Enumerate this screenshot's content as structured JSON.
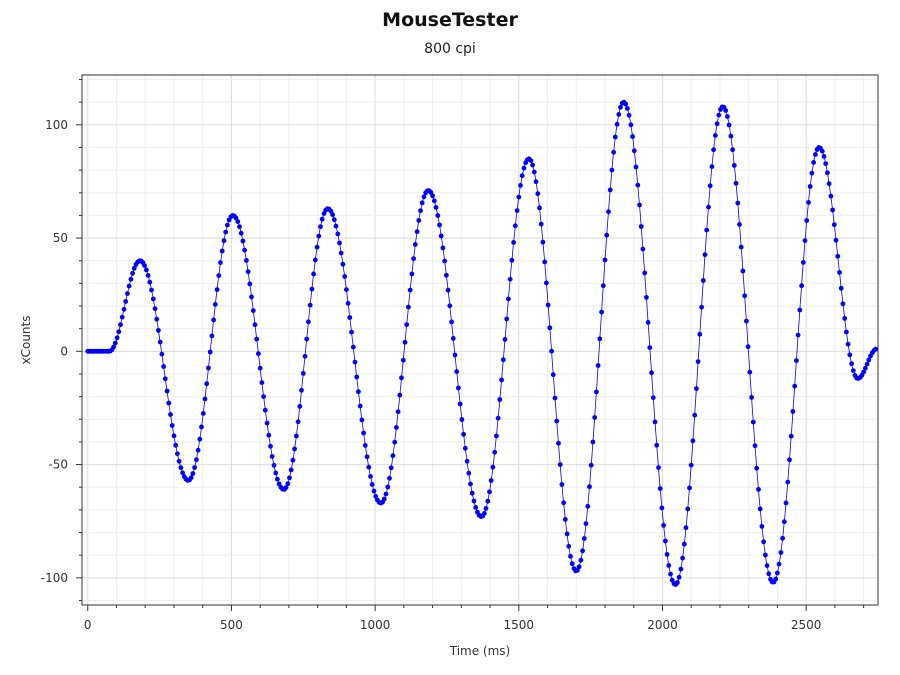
{
  "chart_data": {
    "type": "scatter",
    "title": "MouseTester",
    "subtitle": "800 cpi",
    "xlabel": "Time (ms)",
    "ylabel": "xCounts",
    "xlim": [
      -20,
      2750
    ],
    "ylim": [
      -112,
      122
    ],
    "x_ticks": [
      0,
      500,
      1000,
      1500,
      2000,
      2500
    ],
    "y_ticks": [
      -100,
      -50,
      0,
      50,
      100
    ],
    "grid": true,
    "series": [
      {
        "style": "points-with-smooth-line",
        "color": "#0000ff",
        "x": [
          0,
          75,
          182,
          350,
          505,
          682,
          835,
          1020,
          1185,
          1370,
          1535,
          1700,
          1865,
          2045,
          2210,
          2385,
          2545,
          2680,
          2745
        ],
        "y": [
          0,
          0,
          40,
          -57,
          60,
          -61,
          63,
          -67,
          71,
          -73,
          85,
          -97,
          110,
          -103,
          108,
          -102,
          90,
          -12,
          1
        ]
      }
    ]
  }
}
